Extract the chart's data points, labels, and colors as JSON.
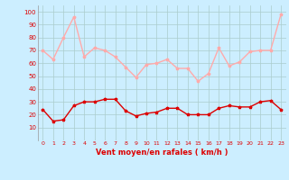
{
  "hours": [
    0,
    1,
    2,
    3,
    4,
    5,
    6,
    7,
    8,
    9,
    10,
    11,
    12,
    13,
    14,
    15,
    16,
    17,
    18,
    19,
    20,
    21,
    22,
    23
  ],
  "wind_avg": [
    24,
    15,
    16,
    27,
    30,
    30,
    32,
    32,
    23,
    19,
    21,
    22,
    25,
    25,
    20,
    20,
    20,
    25,
    27,
    26,
    26,
    30,
    31,
    24
  ],
  "wind_gust": [
    70,
    63,
    80,
    96,
    65,
    72,
    70,
    65,
    57,
    49,
    59,
    60,
    63,
    56,
    56,
    46,
    52,
    72,
    58,
    61,
    69,
    70,
    70,
    98
  ],
  "bg_color": "#cceeff",
  "grid_color": "#aacccc",
  "avg_color": "#dd0000",
  "gust_color": "#ffaaaa",
  "xlabel": "Vent moyen/en rafales ( km/h )",
  "xlabel_color": "#dd0000",
  "ylabel_ticks": [
    10,
    20,
    30,
    40,
    50,
    60,
    70,
    80,
    90,
    100
  ],
  "ylim": [
    0,
    105
  ],
  "xlim": [
    -0.5,
    23.5
  ],
  "linewidth": 1.0
}
